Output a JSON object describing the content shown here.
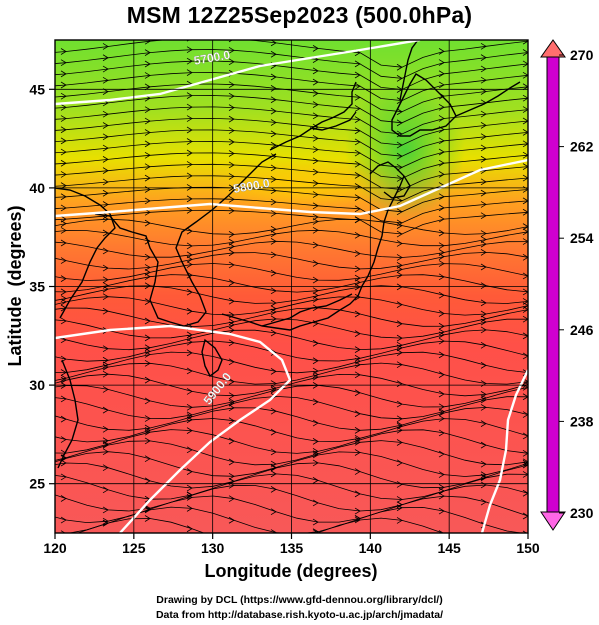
{
  "title": "MSM 12Z25Sep2023 (500.0hPa)",
  "xlabel": "Longitude (degrees)",
  "ylabel": "Latitude  (degrees)",
  "credits": {
    "line1": "Drawing by DCL (https://www.gfd-dennou.org/library/dcl/)",
    "line2": "Data from http://database.rish.kyoto-u.ac.jp/arch/jmadata/"
  },
  "map": {
    "lon_range": [
      120,
      150
    ],
    "lat_range": [
      22.5,
      47.5
    ],
    "x_ticks": [
      "120",
      "125",
      "130",
      "135",
      "140",
      "145",
      "150"
    ],
    "x_tick_values": [
      120,
      125,
      130,
      135,
      140,
      145,
      150
    ],
    "y_ticks": [
      "25",
      "30",
      "35",
      "40",
      "45"
    ],
    "y_tick_values": [
      25,
      30,
      35,
      40,
      45
    ],
    "grid": true,
    "shaded_field": "temperature (K) at 500 hPa",
    "vectors": "wind streamlines"
  },
  "contour_labels": [
    {
      "text": "5700.0",
      "lon": 130,
      "lat": 46.4
    },
    {
      "text": "5800.0",
      "lon": 132.5,
      "lat": 39.9
    },
    {
      "text": "5900.0",
      "lon": 130.5,
      "lat": 29.7
    }
  ],
  "colorbar": {
    "min": 230,
    "max": 270,
    "tick_labels": [
      "270",
      "262",
      "254",
      "246",
      "238",
      "230"
    ],
    "tick_values": [
      270,
      262,
      254,
      246,
      238,
      230
    ],
    "stops": [
      {
        "v": 230,
        "c": "#d000d0"
      },
      {
        "v": 236,
        "c": "#3c00c8"
      },
      {
        "v": 242,
        "c": "#0046ff"
      },
      {
        "v": 246,
        "c": "#00c8ff"
      },
      {
        "v": 250,
        "c": "#00e8a0"
      },
      {
        "v": 254,
        "c": "#30d840"
      },
      {
        "v": 258,
        "c": "#80e030"
      },
      {
        "v": 262,
        "c": "#f0f000"
      },
      {
        "v": 266,
        "c": "#ff8800"
      },
      {
        "v": 270,
        "c": "#ff3030"
      }
    ]
  },
  "colors": {
    "contour": "#ffffff",
    "streamline": "#000000",
    "grid": "#000000"
  }
}
